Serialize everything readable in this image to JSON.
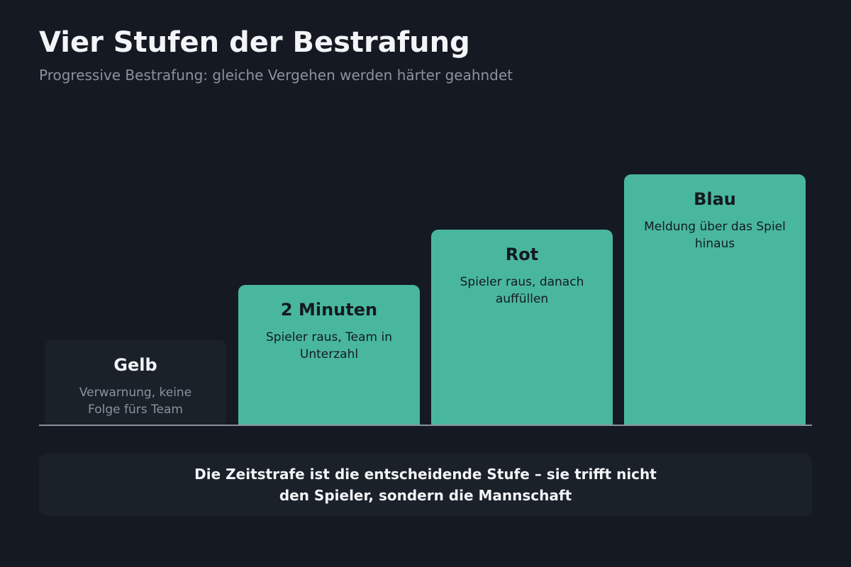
{
  "title": "Vier Stufen der Bestrafung",
  "subtitle": "Progressive Bestrafung: gleiche Vergehen werden härter geahndet",
  "stages": [
    {
      "name": "Gelb",
      "description": "Verwarnung, keine Folge fürs Team",
      "level": 1,
      "color": "#1b2129"
    },
    {
      "name": "2 Minuten",
      "description": "Spieler raus, Team in Unterzahl",
      "level": 2,
      "color": "#49b79e"
    },
    {
      "name": "Rot",
      "description": "Spieler raus, danach auffüllen",
      "level": 3,
      "color": "#49b79e"
    },
    {
      "name": "Blau",
      "description": "Meldung über das Spiel hinaus",
      "level": 4,
      "color": "#49b79e"
    }
  ],
  "callout": "Die Zeitstrafe ist die entscheidende Stufe – sie trifft nicht den Spieler, sondern die Mannschaft"
}
